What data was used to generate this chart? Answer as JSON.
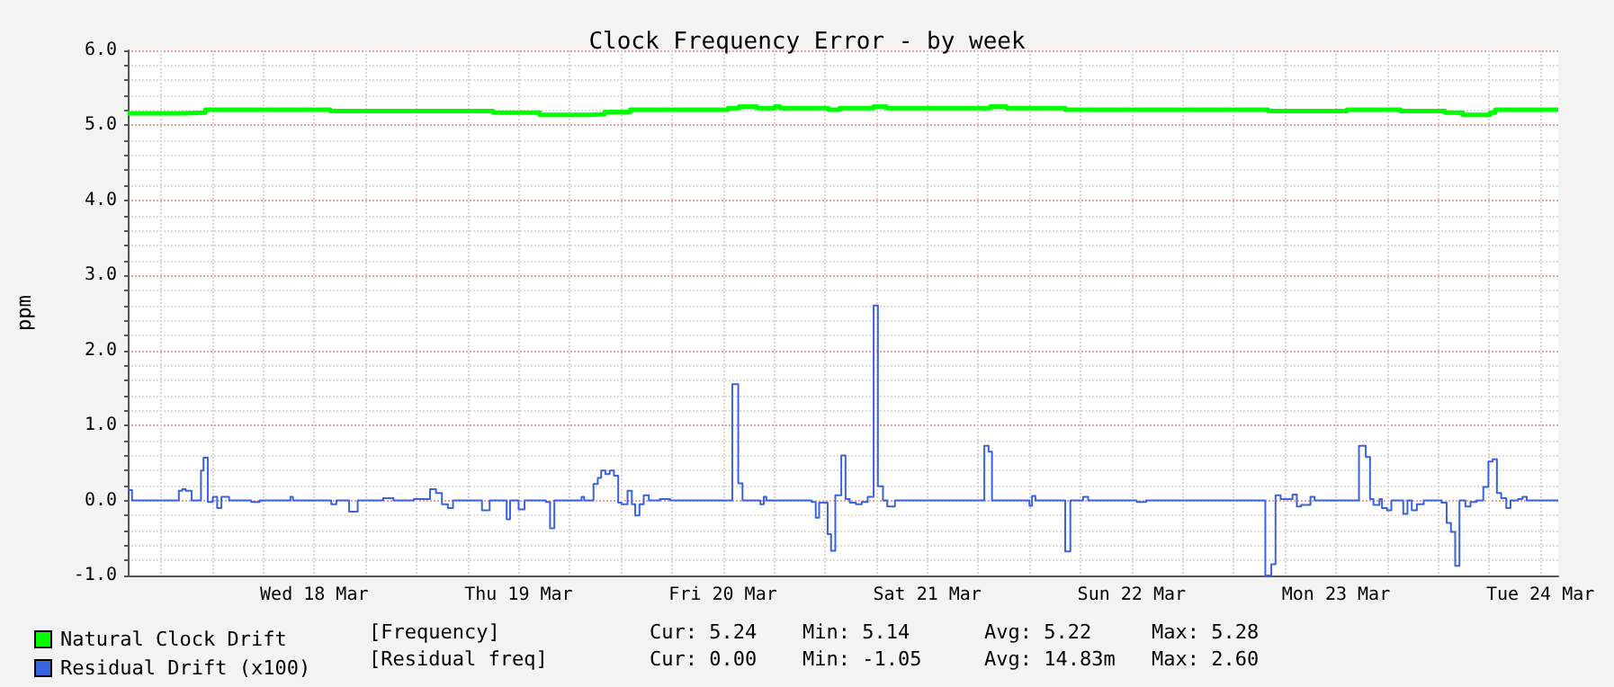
{
  "chart_data": {
    "type": "step",
    "title": "Clock Frequency Error - by week",
    "ylabel": "ppm",
    "xlim": [
      "--03-17T14:06",
      "--03-24T14:06"
    ],
    "xticks": [
      {
        "value": "--03-17T18:00",
        "label": null
      },
      {
        "value": "--03-18T00:00",
        "label": null
      },
      {
        "value": "--03-18T06:00",
        "label": null
      },
      {
        "value": "--03-18T12:00",
        "label": "Wed 18 Mar"
      },
      {
        "value": "--03-18T18:00",
        "label": null
      },
      {
        "value": "--03-19T00:00",
        "label": null
      },
      {
        "value": "--03-19T06:00",
        "label": null
      },
      {
        "value": "--03-19T12:00",
        "label": "Thu 19 Mar"
      },
      {
        "value": "--03-19T18:00",
        "label": null
      },
      {
        "value": "--03-20T00:00",
        "label": null
      },
      {
        "value": "--03-20T06:00",
        "label": null
      },
      {
        "value": "--03-20T12:00",
        "label": "Fri 20 Mar"
      },
      {
        "value": "--03-20T18:00",
        "label": null
      },
      {
        "value": "--03-21T00:00",
        "label": null
      },
      {
        "value": "--03-21T06:00",
        "label": null
      },
      {
        "value": "--03-21T12:00",
        "label": "Sat 21 Mar"
      },
      {
        "value": "--03-21T18:00",
        "label": null
      },
      {
        "value": "--03-22T00:00",
        "label": null
      },
      {
        "value": "--03-22T06:00",
        "label": null
      },
      {
        "value": "--03-22T12:00",
        "label": "Sun 22 Mar"
      },
      {
        "value": "--03-22T18:00",
        "label": null
      },
      {
        "value": "--03-23T00:00",
        "label": null
      },
      {
        "value": "--03-23T06:00",
        "label": null
      },
      {
        "value": "--03-23T12:00",
        "label": "Mon 23 Mar"
      },
      {
        "value": "--03-23T18:00",
        "label": null
      },
      {
        "value": "--03-24T00:00",
        "label": null
      },
      {
        "value": "--03-24T06:00",
        "label": null
      },
      {
        "value": "--03-24T12:00",
        "label": "Tue 24 Mar"
      }
    ],
    "ylim": [
      -1,
      6
    ],
    "yticks": [
      {
        "value": -1,
        "label": "-1.0"
      },
      {
        "value": -0.8,
        "label": null
      },
      {
        "value": -0.6,
        "label": null
      },
      {
        "value": -0.4,
        "label": null
      },
      {
        "value": -0.2,
        "label": null
      },
      {
        "value": 0,
        "label": "0.0"
      },
      {
        "value": 0.2,
        "label": null
      },
      {
        "value": 0.4,
        "label": null
      },
      {
        "value": 0.6,
        "label": null
      },
      {
        "value": 0.8,
        "label": null
      },
      {
        "value": 1,
        "label": "1.0"
      },
      {
        "value": 1.2,
        "label": null
      },
      {
        "value": 1.4,
        "label": null
      },
      {
        "value": 1.6,
        "label": null
      },
      {
        "value": 1.8,
        "label": null
      },
      {
        "value": 2,
        "label": "2.0"
      },
      {
        "value": 2.2,
        "label": null
      },
      {
        "value": 2.4,
        "label": null
      },
      {
        "value": 2.6,
        "label": null
      },
      {
        "value": 2.8,
        "label": null
      },
      {
        "value": 3,
        "label": "3.0"
      },
      {
        "value": 3.2,
        "label": null
      },
      {
        "value": 3.4,
        "label": null
      },
      {
        "value": 3.6,
        "label": null
      },
      {
        "value": 3.8,
        "label": null
      },
      {
        "value": 4,
        "label": "4.0"
      },
      {
        "value": 4.2,
        "label": null
      },
      {
        "value": 4.4,
        "label": null
      },
      {
        "value": 4.6,
        "label": null
      },
      {
        "value": 4.8,
        "label": null
      },
      {
        "value": 5,
        "label": "5.0"
      },
      {
        "value": 5.2,
        "label": null
      },
      {
        "value": 5.4,
        "label": null
      },
      {
        "value": 5.6,
        "label": null
      },
      {
        "value": 5.8,
        "label": null
      },
      {
        "value": 6,
        "label": "6.0"
      }
    ],
    "grid": true,
    "legend": "bottom left",
    "marker": "none",
    "annotations": [
      "[Frequency]",
      "Cur: 5.24",
      "Min: 5.14",
      "Avg: 5.22",
      "Max: 5.28",
      "[Residual freq]",
      "Cur: 0.00",
      "Min: -1.05",
      "Avg: 14.83m",
      "Max: 2.60"
    ],
    "series": [
      {
        "name": "Natural Clock Drift",
        "color": "#00ff00",
        "x": [
          "--03-17T14:06",
          "--03-17T20:36",
          "--03-17T23:12",
          "--03-18T13:54",
          "--03-19T09:00",
          "--03-19T14:30",
          "--03-19T20:24",
          "--03-19T22:06",
          "--03-20T01:06",
          "--03-20T12:36",
          "--03-20T13:54",
          "--03-20T16:00",
          "--03-20T18:06",
          "--03-20T18:42",
          "--03-21T00:24",
          "--03-21T01:42",
          "--03-21T05:42",
          "--03-21T07:12",
          "--03-21T19:24",
          "--03-21T21:18",
          "--03-22T04:12",
          "--03-23T04:00",
          "--03-23T13:18",
          "--03-23T19:36",
          "--03-24T00:48",
          "--03-24T02:54",
          "--03-24T06:06",
          "--03-24T06:42",
          "--03-24T14:06"
        ],
        "values": [
          5.16,
          5.17,
          5.21,
          5.19,
          5.17,
          5.14,
          5.15,
          5.18,
          5.21,
          5.23,
          5.25,
          5.23,
          5.25,
          5.23,
          5.21,
          5.23,
          5.25,
          5.23,
          5.25,
          5.23,
          5.21,
          5.19,
          5.21,
          5.19,
          5.17,
          5.14,
          5.17,
          5.21,
          5.21
        ]
      },
      {
        "name": "Residual Drift (x100)",
        "color": "#3a63e0",
        "x": [
          "--03-17T14:06",
          "--03-17T14:36",
          "--03-17T20:06",
          "--03-17T20:30",
          "--03-17T20:54",
          "--03-17T21:36",
          "--03-17T22:42",
          "--03-17T23:00",
          "--03-17T23:30",
          "--03-18T00:06",
          "--03-18T00:36",
          "--03-18T01:06",
          "--03-18T02:00",
          "--03-18T04:36",
          "--03-18T05:36",
          "--03-18T09:12",
          "--03-18T09:30",
          "--03-18T14:00",
          "--03-18T14:36",
          "--03-18T16:06",
          "--03-18T17:06",
          "--03-18T20:06",
          "--03-18T21:18",
          "--03-18T23:42",
          "--03-19T01:36",
          "--03-19T02:18",
          "--03-19T03:00",
          "--03-19T03:42",
          "--03-19T04:18",
          "--03-19T07:42",
          "--03-19T08:36",
          "--03-19T10:36",
          "--03-19T11:00",
          "--03-19T12:00",
          "--03-19T12:42",
          "--03-19T15:12",
          "--03-19T15:42",
          "--03-19T16:12",
          "--03-19T19:24",
          "--03-19T19:42",
          "--03-19T20:48",
          "--03-19T21:18",
          "--03-19T21:42",
          "--03-19T22:12",
          "--03-19T22:42",
          "--03-19T23:12",
          "--03-19T23:42",
          "--03-20T00:06",
          "--03-20T00:48",
          "--03-20T01:18",
          "--03-20T01:42",
          "--03-20T02:12",
          "--03-20T02:42",
          "--03-20T03:18",
          "--03-20T04:36",
          "--03-20T05:48",
          "--03-20T13:06",
          "--03-20T13:48",
          "--03-20T14:18",
          "--03-20T16:24",
          "--03-20T16:48",
          "--03-20T17:06",
          "--03-20T22:24",
          "--03-20T22:54",
          "--03-20T23:18",
          "--03-20T23:48",
          "--03-21T00:18",
          "--03-21T00:42",
          "--03-21T01:12",
          "--03-21T01:54",
          "--03-21T02:24",
          "--03-21T02:54",
          "--03-21T03:36",
          "--03-21T04:18",
          "--03-21T05:00",
          "--03-21T05:42",
          "--03-21T06:12",
          "--03-21T06:48",
          "--03-21T07:18",
          "--03-21T08:12",
          "--03-21T18:42",
          "--03-21T19:12",
          "--03-21T19:36",
          "--03-22T00:00",
          "--03-22T00:18",
          "--03-22T00:42",
          "--03-22T04:12",
          "--03-22T04:48",
          "--03-22T06:18",
          "--03-22T06:54",
          "--03-22T12:36",
          "--03-22T13:42",
          "--03-23T03:42",
          "--03-23T04:24",
          "--03-23T04:54",
          "--03-23T05:30",
          "--03-23T06:54",
          "--03-23T07:24",
          "--03-23T07:54",
          "--03-23T09:00",
          "--03-23T09:30",
          "--03-23T14:42",
          "--03-23T15:30",
          "--03-23T16:00",
          "--03-23T16:24",
          "--03-23T17:06",
          "--03-23T17:24",
          "--03-23T18:00",
          "--03-23T18:30",
          "--03-23T19:54",
          "--03-23T20:24",
          "--03-23T20:54",
          "--03-23T21:30",
          "--03-23T22:18",
          "--03-24T00:24",
          "--03-24T01:00",
          "--03-24T01:30",
          "--03-24T02:00",
          "--03-24T02:30",
          "--03-24T03:12",
          "--03-24T03:48",
          "--03-24T04:30",
          "--03-24T05:18",
          "--03-24T05:54",
          "--03-24T06:24",
          "--03-24T06:54",
          "--03-24T07:24",
          "--03-24T08:00",
          "--03-24T08:30",
          "--03-24T09:24",
          "--03-24T09:54",
          "--03-24T10:24",
          "--03-24T14:06"
        ],
        "values": [
          0.14,
          0,
          0.13,
          0.15,
          0.13,
          0,
          0.4,
          0.57,
          -0.02,
          0.05,
          -0.1,
          0.05,
          0,
          -0.02,
          0,
          0.05,
          0,
          -0.05,
          0,
          -0.15,
          0,
          0.03,
          0,
          0.02,
          0.15,
          0.1,
          -0.05,
          -0.1,
          0,
          -0.13,
          0,
          -0.25,
          0,
          -0.12,
          0,
          -0.02,
          -0.37,
          0,
          0.05,
          0,
          0.22,
          0.3,
          0.4,
          0.35,
          0.4,
          0.33,
          -0.03,
          -0.05,
          0.13,
          -0.05,
          -0.2,
          -0.05,
          0.07,
          0,
          0.02,
          0,
          1.55,
          0.23,
          0,
          -0.05,
          0.05,
          0,
          -0.02,
          -0.23,
          -0.03,
          -0.03,
          -0.45,
          -0.67,
          0.07,
          0.6,
          0.02,
          -0.03,
          -0.05,
          -0.02,
          0.05,
          2.6,
          0.19,
          0,
          -0.08,
          0,
          0.73,
          0.65,
          0,
          -0.07,
          0.06,
          0,
          -0.68,
          0,
          0.05,
          0,
          -0.02,
          0,
          -1.0,
          -0.85,
          0.07,
          0.02,
          0.08,
          -0.08,
          -0.06,
          0.05,
          0,
          0.73,
          0.58,
          0.02,
          -0.06,
          0.02,
          -0.1,
          -0.13,
          0,
          -0.18,
          0,
          -0.13,
          -0.05,
          0,
          -0.03,
          -0.3,
          -0.42,
          -0.87,
          0,
          -0.08,
          -0.02,
          0,
          0.18,
          0.52,
          0.55,
          0.1,
          0.03,
          -0.1,
          0,
          0.02,
          0.05,
          0,
          0
        ]
      }
    ]
  }
}
